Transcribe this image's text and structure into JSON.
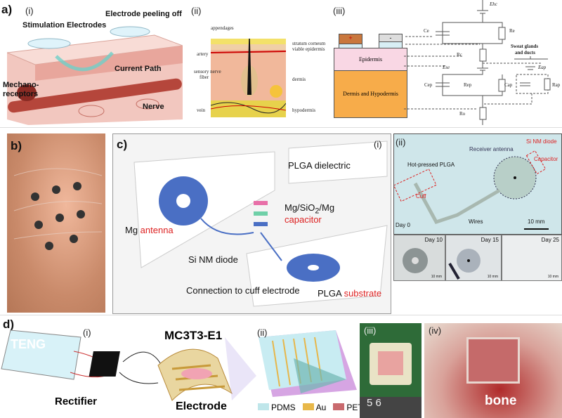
{
  "panel_a": {
    "label": "a)",
    "sub_i": "(i)",
    "sub_ii": "(ii)",
    "sub_iii": "(iii)",
    "i": {
      "stim": "Stimulation Electrodes",
      "peel": "Electrode peeling off",
      "current": "Current Path",
      "mech1": "Mechano-",
      "mech2": "receptors",
      "nerve": "Nerve"
    },
    "ii": {
      "appendages": "appendages",
      "artery": "artery",
      "nerve1": "sensory nerve",
      "nerve2": "fiber",
      "vein": "vein",
      "sc": "stratum corneum",
      "ve": "viable epidermis",
      "dermis": "dermis",
      "hypo": "hypodermis"
    },
    "iii": {
      "plus": "+",
      "minus": "-",
      "epidermis": "Epidermis",
      "dermis": "Dermis and Hypodermis",
      "ehc": "Ehc",
      "ce": "Ce",
      "re": "Re",
      "rc": "Rc",
      "ese": "Ese",
      "cep": "Cep",
      "rep": "Rep",
      "ro": "Ro",
      "sweat1": "Sweat glands",
      "sweat2": "and ducts",
      "eap": "Eap",
      "cap": "Cap",
      "rap": "Rap"
    }
  },
  "panel_b": {
    "label": "b)"
  },
  "panel_c": {
    "label": "c)",
    "sub_i": "(i)",
    "sub_ii": "(ii)",
    "i": {
      "plga_d": "PLGA dielectric",
      "cap1": "Mg/SiO",
      "cap_sub": "2",
      "cap2": "/Mg",
      "capacitor": "capacitor",
      "mg": "Mg ",
      "antenna": "antenna",
      "diode": "Si NM diode",
      "conn": "Connection to cuff electrode",
      "plga": "PLGA ",
      "substrate": "substrate"
    },
    "ii": {
      "receiver": "Receiver antenna",
      "si": "Si NM diode",
      "capacitor": "Capacitor",
      "hot": "Hot-pressed PLGA",
      "cuff": "Cuff",
      "wires": "Wires",
      "day0": "Day 0",
      "scale": "10 mm",
      "days": [
        {
          "day": "Day 10",
          "scale": "10 mm"
        },
        {
          "day": "Day 15",
          "scale": "10 mm"
        },
        {
          "day": "Day 25",
          "scale": "10 mm"
        }
      ]
    }
  },
  "panel_d": {
    "label": "d)",
    "sub_i": "(i)",
    "sub_ii": "(ii)",
    "sub_iii": "(iii)",
    "sub_iv": "(iv)",
    "teng": "TENG",
    "rectifier": "Rectifier",
    "cell": "MC3T3-E1",
    "electrode": "Electrode",
    "bone": "bone",
    "legend": [
      {
        "name": "PDMS",
        "color": "#bfe6ea"
      },
      {
        "name": "Au",
        "color": "#e8b84a"
      },
      {
        "name": "PET",
        "color": "#c96a6e"
      }
    ],
    "ruler": "5  6"
  }
}
